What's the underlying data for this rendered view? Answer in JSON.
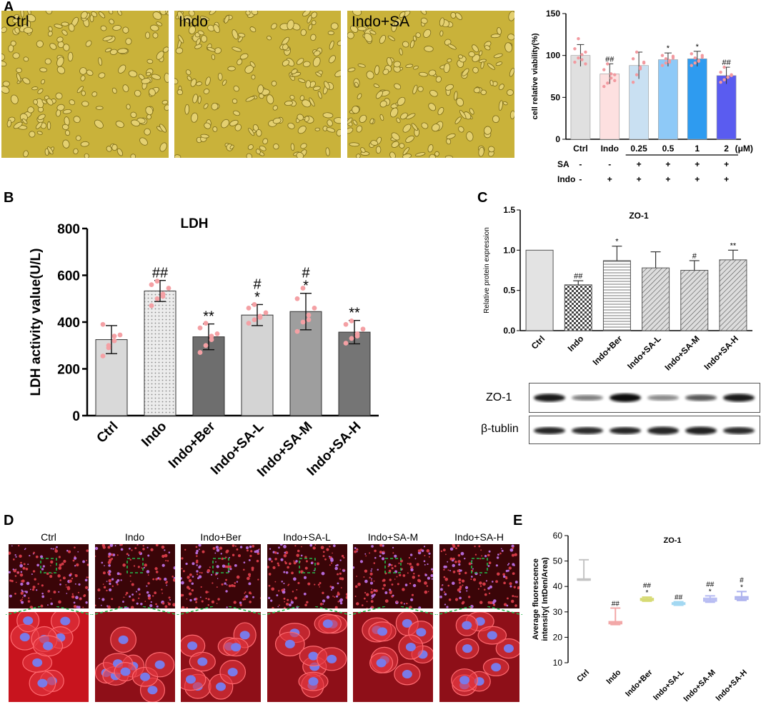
{
  "panels": {
    "a": "A",
    "b": "B",
    "c": "C",
    "d": "D",
    "e": "E"
  },
  "micrographs_a": [
    "Ctrl",
    "Indo",
    "Indo+SA"
  ],
  "blot": {
    "rows": [
      "ZO-1",
      "β-tublin"
    ]
  },
  "if_headers": [
    "Ctrl",
    "Indo",
    "Indo+Ber",
    "Indo+SA-L",
    "Indo+SA-M",
    "Indo+SA-H"
  ],
  "colors": {
    "micro_bg": "#c9b23a",
    "if_bg": "#b4141c",
    "nucleus": "#7a7ae8",
    "scale_box": "#22b84a"
  },
  "chart_data": [
    {
      "id": "viability",
      "type": "bar",
      "ylabel": "cell relative viability(%)",
      "categories": [
        "Ctrl",
        "Indo",
        "0.25",
        "0.5",
        "1",
        "2"
      ],
      "unit_label": "(μM)",
      "values": [
        100,
        78,
        88,
        95,
        96,
        76
      ],
      "errors": [
        13,
        12,
        16,
        8,
        9,
        10
      ],
      "annotations": [
        "",
        "##",
        "",
        "*",
        "*",
        "##"
      ],
      "ylim": [
        0,
        150
      ],
      "yticks": [
        0,
        50,
        100,
        150
      ],
      "colors": [
        "#e0e0e0",
        "#fde0e0",
        "#c9e0f2",
        "#8ec9f7",
        "#2e9bf0",
        "#5a5cf0"
      ],
      "points": [
        [
          92,
          97,
          101,
          104,
          108,
          120,
          95,
          90
        ],
        [
          63,
          67,
          73,
          77,
          83,
          90,
          78,
          70
        ],
        [
          68,
          77,
          86,
          91,
          96,
          104,
          84,
          92
        ],
        [
          88,
          91,
          94,
          97,
          100,
          96,
          92,
          99
        ],
        [
          88,
          91,
          94,
          98,
          102,
          97,
          93,
          100
        ],
        [
          68,
          71,
          74,
          77,
          80,
          86,
          74,
          76
        ]
      ],
      "treatment_rows": [
        {
          "label": "SA",
          "values": [
            "-",
            "-",
            "+",
            "+",
            "+",
            "+"
          ]
        },
        {
          "label": "Indo",
          "values": [
            "-",
            "+",
            "+",
            "+",
            "+",
            "+"
          ]
        }
      ]
    },
    {
      "id": "ldh",
      "type": "bar",
      "title": "LDH",
      "ylabel": "LDH activity value(U/L)",
      "categories": [
        "Ctrl",
        "Indo",
        "Indo+Ber",
        "Indo+SA-L",
        "Indo+SA-M",
        "Indo+SA-H"
      ],
      "values": [
        325,
        533,
        337,
        430,
        445,
        357
      ],
      "errors": [
        60,
        45,
        55,
        45,
        78,
        50
      ],
      "annotations": [
        [],
        [
          "##"
        ],
        [
          "**"
        ],
        [
          "#",
          "*"
        ],
        [
          "#",
          "*"
        ],
        [
          "**"
        ]
      ],
      "ylim": [
        0,
        800
      ],
      "yticks": [
        0,
        200,
        400,
        600,
        800
      ],
      "colors": [
        "#d9d9d9",
        "#ececec",
        "#6e6e6e",
        "#d4d4d4",
        "#9e9e9e",
        "#757575"
      ],
      "patterns": [
        "none",
        "dots",
        "none",
        "none",
        "none",
        "none"
      ],
      "points": [
        [
          255,
          290,
          320,
          345,
          390,
          300,
          340
        ],
        [
          470,
          500,
          520,
          545,
          560,
          575,
          510
        ],
        [
          270,
          300,
          325,
          350,
          375,
          395,
          340
        ],
        [
          395,
          410,
          425,
          440,
          460,
          475,
          420
        ],
        [
          360,
          400,
          430,
          460,
          500,
          545,
          410
        ],
        [
          310,
          330,
          350,
          370,
          390,
          405,
          340
        ]
      ]
    },
    {
      "id": "zo1_blot",
      "type": "bar",
      "title": "ZO-1",
      "ylabel": "Relative protein expression",
      "categories": [
        "Ctrl",
        "Indo",
        "Indo+Ber",
        "Indo+SA-L",
        "Indo+SA-M",
        "Indo+SA-H"
      ],
      "values": [
        1.0,
        0.57,
        0.87,
        0.78,
        0.75,
        0.88
      ],
      "errors": [
        0,
        0.05,
        0.18,
        0.2,
        0.12,
        0.12
      ],
      "annotations": [
        "",
        "##",
        "*",
        "",
        "#",
        "**"
      ],
      "ylim": [
        0,
        1.5
      ],
      "yticks": [
        "0.0",
        "0.5",
        "1.0",
        "1.5"
      ],
      "patterns": [
        "solid",
        "checker",
        "hlines",
        "diag",
        "diag",
        "diag"
      ]
    },
    {
      "id": "zo1_if",
      "type": "box",
      "title": "ZO-1",
      "ylabel": "Average fluorescence intensity( IntDen/Area)",
      "categories": [
        "Ctrl",
        "Indo",
        "Indo+Ber",
        "Indo+SA-L",
        "Indo+SA-M",
        "Indo+SA-H"
      ],
      "boxes": [
        {
          "min": 42.5,
          "q1": 42.5,
          "median": 42.8,
          "q3": 43.0,
          "max": 50.5
        },
        {
          "min": 25.0,
          "q1": 25.3,
          "median": 25.8,
          "q3": 26.2,
          "max": 31.5
        },
        {
          "min": 34.2,
          "q1": 34.5,
          "median": 35.0,
          "q3": 35.3,
          "max": 35.8
        },
        {
          "min": 32.6,
          "q1": 32.9,
          "median": 33.3,
          "q3": 33.6,
          "max": 34.0
        },
        {
          "min": 33.8,
          "q1": 34.2,
          "median": 34.8,
          "q3": 35.4,
          "max": 36.3
        },
        {
          "min": 34.5,
          "q1": 34.9,
          "median": 35.5,
          "q3": 36.0,
          "max": 38.0
        }
      ],
      "annotations": [
        [],
        [
          "##"
        ],
        [
          "##",
          "*"
        ],
        [
          "##"
        ],
        [
          "##",
          "*"
        ],
        [
          "#",
          "*"
        ]
      ],
      "colors": [
        "#c4c4c4",
        "#f2a7a7",
        "#d6da73",
        "#a3d8f2",
        "#b6bbf2",
        "#aeb3ee"
      ],
      "ylim": [
        10,
        60
      ],
      "yticks": [
        10,
        20,
        30,
        40,
        50,
        60
      ]
    }
  ]
}
